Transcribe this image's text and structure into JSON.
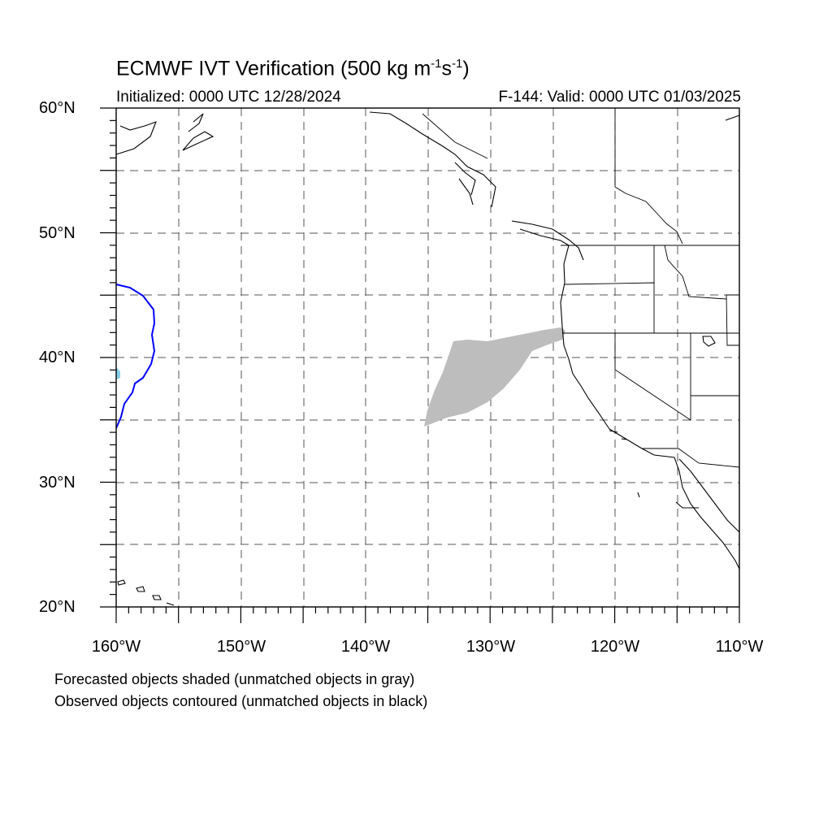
{
  "title": {
    "main": "ECMWF IVT Verification (500 kg m",
    "exp1": "-1",
    "mid": "s",
    "exp2": "-1",
    "close": ")"
  },
  "subtitle": {
    "initialized": "Initialized: 0000 UTC 12/28/2024",
    "valid": "F-144: Valid: 0000 UTC 01/03/2025"
  },
  "lat_labels": [
    "60°N",
    "50°N",
    "40°N",
    "30°N",
    "20°N"
  ],
  "lon_labels": [
    "160°W",
    "150°W",
    "140°W",
    "130°W",
    "120°W",
    "110°W"
  ],
  "notes": {
    "forecast": "Forecasted objects shaded (unmatched objects in gray)",
    "observed": "Observed objects contoured (unmatched objects in black)"
  },
  "colors": {
    "forecast_unmatched": "#bdbdbd",
    "observed_matched": "#0000ff",
    "forecast_matched": "#87ceeb",
    "coast": "#000000",
    "grid": "#555555"
  }
}
